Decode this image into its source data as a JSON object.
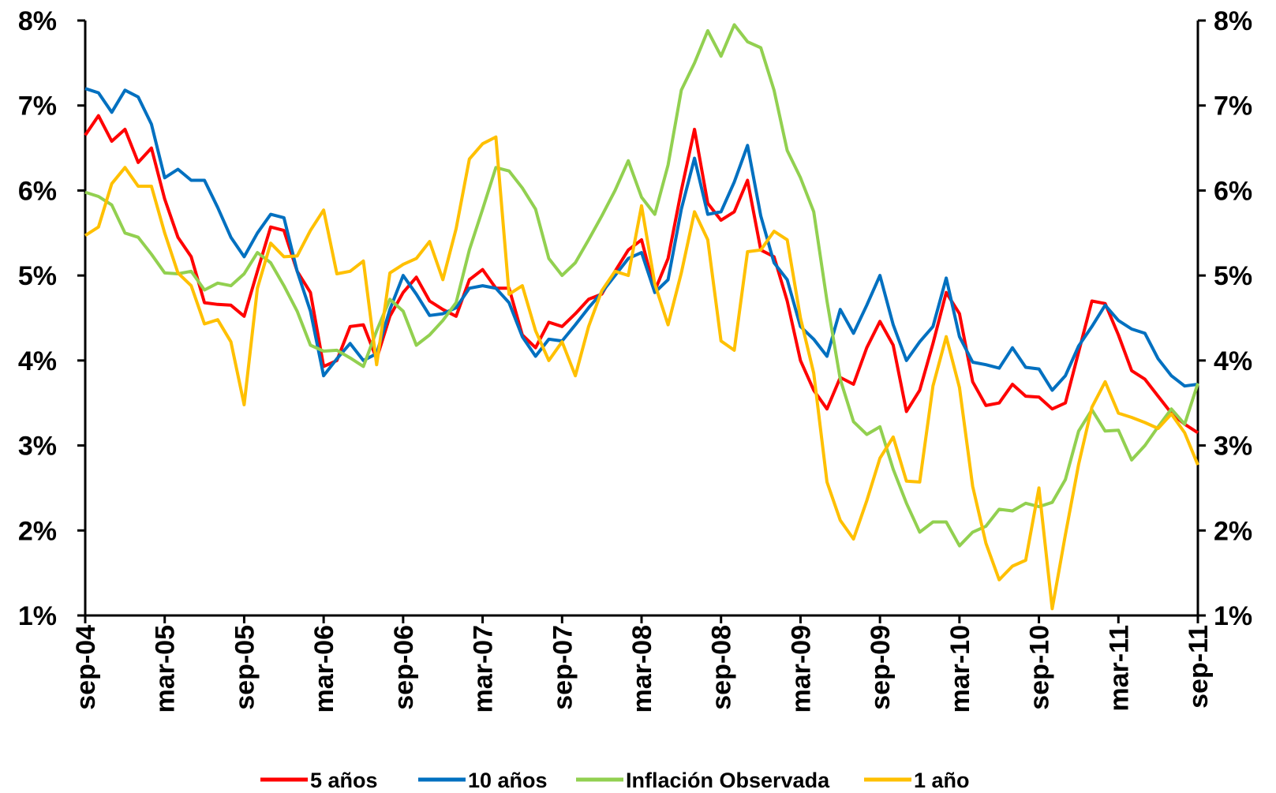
{
  "chart_data": {
    "type": "line",
    "title": "",
    "xlabel": "",
    "ylabel": "",
    "ylim": [
      1,
      8
    ],
    "x_tick_labels": [
      "sep-04",
      "mar-05",
      "sep-05",
      "mar-06",
      "sep-06",
      "mar-07",
      "sep-07",
      "mar-08",
      "sep-08",
      "mar-09",
      "sep-09",
      "mar-10",
      "sep-10",
      "mar-11",
      "sep-11"
    ],
    "y_tick_labels_left": [
      "1%",
      "2%",
      "3%",
      "4%",
      "5%",
      "6%",
      "7%",
      "8%"
    ],
    "y_tick_labels_right": [
      "1%",
      "2%",
      "3%",
      "4%",
      "5%",
      "6%",
      "7%",
      "8%"
    ],
    "legend_position": "bottom",
    "grid": false,
    "series": [
      {
        "name": "5 años",
        "color": "#ff0000",
        "values": [
          6.65,
          6.88,
          6.58,
          6.72,
          6.33,
          6.5,
          5.9,
          5.45,
          5.22,
          4.68,
          4.66,
          4.65,
          4.52,
          5.05,
          5.57,
          5.53,
          5.05,
          4.8,
          3.93,
          4.0,
          4.4,
          4.42,
          4.02,
          4.52,
          4.8,
          4.98,
          4.7,
          4.6,
          4.52,
          4.95,
          5.07,
          4.85,
          4.85,
          4.3,
          4.15,
          4.45,
          4.4,
          4.55,
          4.72,
          4.78,
          5.05,
          5.3,
          5.42,
          4.82,
          5.2,
          6.0,
          6.72,
          5.85,
          5.65,
          5.75,
          6.12,
          5.3,
          5.22,
          4.7,
          4.0,
          3.65,
          3.43,
          3.8,
          3.72,
          4.15,
          4.46,
          4.18,
          3.4,
          3.65,
          4.2,
          4.8,
          4.55,
          3.75,
          3.47,
          3.5,
          3.72,
          3.58,
          3.57,
          3.43,
          3.5,
          4.1,
          4.7,
          4.67,
          4.3,
          3.88,
          3.78,
          3.58,
          3.38,
          3.25,
          3.15
        ]
      },
      {
        "name": "10 años",
        "color": "#0070c0",
        "values": [
          7.2,
          7.15,
          6.92,
          7.18,
          7.1,
          6.78,
          6.15,
          6.25,
          6.12,
          6.12,
          5.8,
          5.45,
          5.22,
          5.5,
          5.72,
          5.68,
          5.05,
          4.58,
          3.82,
          4.02,
          4.2,
          4.0,
          4.08,
          4.6,
          5.0,
          4.78,
          4.53,
          4.55,
          4.62,
          4.85,
          4.88,
          4.85,
          4.68,
          4.28,
          4.05,
          4.25,
          4.23,
          4.42,
          4.62,
          4.8,
          5.0,
          5.2,
          5.27,
          4.8,
          4.95,
          5.78,
          6.38,
          5.72,
          5.75,
          6.1,
          6.53,
          5.7,
          5.15,
          4.95,
          4.4,
          4.25,
          4.05,
          4.6,
          4.32,
          4.65,
          5.0,
          4.42,
          4.0,
          4.22,
          4.4,
          4.97,
          4.28,
          3.98,
          3.95,
          3.91,
          4.15,
          3.92,
          3.9,
          3.65,
          3.82,
          4.17,
          4.4,
          4.65,
          4.47,
          4.37,
          4.32,
          4.02,
          3.82,
          3.7,
          3.72
        ]
      },
      {
        "name": "Inflación Observada",
        "color": "#92d050",
        "values": [
          5.98,
          5.93,
          5.83,
          5.5,
          5.45,
          5.25,
          5.03,
          5.02,
          5.05,
          4.83,
          4.91,
          4.88,
          5.02,
          5.27,
          5.15,
          4.88,
          4.58,
          4.18,
          4.11,
          4.12,
          4.03,
          3.93,
          4.35,
          4.72,
          4.58,
          4.18,
          4.3,
          4.47,
          4.68,
          5.3,
          5.78,
          6.27,
          6.23,
          6.03,
          5.78,
          5.2,
          5.0,
          5.15,
          5.42,
          5.7,
          6.0,
          6.35,
          5.92,
          5.72,
          6.3,
          7.18,
          7.5,
          7.88,
          7.58,
          7.95,
          7.75,
          7.68,
          7.18,
          6.47,
          6.15,
          5.75,
          4.7,
          3.78,
          3.28,
          3.13,
          3.22,
          2.72,
          2.32,
          1.98,
          2.1,
          2.1,
          1.82,
          1.98,
          2.05,
          2.25,
          2.23,
          2.32,
          2.28,
          2.33,
          2.6,
          3.17,
          3.42,
          3.17,
          3.18,
          2.83,
          3.0,
          3.22,
          3.43,
          3.25,
          3.73
        ]
      },
      {
        "name": "1 año",
        "color": "#ffc000",
        "values": [
          5.47,
          5.57,
          6.08,
          6.27,
          6.05,
          6.05,
          5.5,
          5.03,
          4.88,
          4.43,
          4.48,
          4.22,
          3.48,
          4.85,
          5.38,
          5.22,
          5.23,
          5.53,
          5.77,
          5.02,
          5.05,
          5.17,
          3.95,
          5.03,
          5.13,
          5.2,
          5.4,
          4.95,
          5.55,
          6.37,
          6.55,
          6.63,
          4.78,
          4.88,
          4.35,
          4.0,
          4.22,
          3.82,
          4.4,
          4.82,
          5.05,
          5.0,
          5.82,
          4.9,
          4.42,
          5.03,
          5.75,
          5.42,
          4.23,
          4.12,
          5.28,
          5.3,
          5.52,
          5.42,
          4.5,
          3.85,
          2.57,
          2.12,
          1.9,
          2.35,
          2.85,
          3.1,
          2.58,
          2.57,
          3.7,
          4.28,
          3.68,
          2.52,
          1.85,
          1.42,
          1.58,
          1.65,
          2.5,
          1.08,
          1.95,
          2.78,
          3.45,
          3.75,
          3.38,
          3.33,
          3.27,
          3.2,
          3.37,
          3.15,
          2.77
        ]
      }
    ]
  }
}
